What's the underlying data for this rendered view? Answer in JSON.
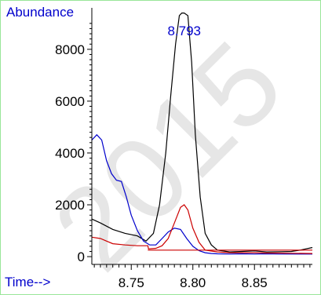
{
  "chart_data": {
    "type": "line",
    "ylabel": "Abundance",
    "xlabel": "Time-->",
    "xlim": [
      8.718,
      8.897
    ],
    "ylim": [
      -300,
      9600
    ],
    "x_ticks": [
      8.75,
      8.8,
      8.85
    ],
    "x_tick_labels": [
      "8.75",
      "8.80",
      "8.85"
    ],
    "y_ticks": [
      0,
      2000,
      4000,
      6000,
      8000
    ],
    "y_tick_labels": [
      "0",
      "2000",
      "4000",
      "6000",
      "8000"
    ],
    "annotation": {
      "text": "8.793",
      "x": 8.793
    },
    "watermark": "2015",
    "grid": false,
    "series": [
      {
        "color": "#000000",
        "x": [
          8.718,
          8.725,
          8.735,
          8.745,
          8.755,
          8.762,
          8.768,
          8.773,
          8.778,
          8.782,
          8.786,
          8.789,
          8.791,
          8.793,
          8.796,
          8.799,
          8.802,
          8.806,
          8.81,
          8.815,
          8.82,
          8.83,
          8.84,
          8.85,
          8.86,
          8.87,
          8.88,
          8.887,
          8.897
        ],
        "y": [
          1450,
          1300,
          1050,
          900,
          800,
          600,
          900,
          2000,
          4000,
          6200,
          8200,
          9300,
          9400,
          9400,
          9300,
          7500,
          4700,
          2300,
          900,
          450,
          250,
          180,
          200,
          220,
          180,
          190,
          200,
          250,
          350
        ]
      },
      {
        "color": "#0000cc",
        "x": [
          8.718,
          8.722,
          8.726,
          8.73,
          8.734,
          8.738,
          8.742,
          8.746,
          8.75,
          8.755,
          8.76,
          8.765,
          8.77,
          8.775,
          8.78,
          8.785,
          8.79,
          8.795,
          8.8,
          8.805,
          8.81,
          8.815,
          8.82,
          8.83,
          8.84,
          8.85,
          8.86,
          8.87,
          8.88,
          8.897
        ],
        "y": [
          4500,
          4700,
          4500,
          3700,
          3200,
          2950,
          2900,
          2300,
          1600,
          1000,
          600,
          450,
          450,
          700,
          950,
          1100,
          1050,
          700,
          400,
          230,
          150,
          120,
          110,
          100,
          110,
          100,
          110,
          100,
          100,
          100
        ]
      },
      {
        "color": "#cc0000",
        "x": [
          8.718,
          8.725,
          8.73,
          8.735,
          8.745,
          8.755,
          8.762,
          8.7635,
          8.764,
          8.77,
          8.775,
          8.78,
          8.785,
          8.79,
          8.793,
          8.796,
          8.8,
          8.805,
          8.81,
          8.82,
          8.83,
          8.84,
          8.85,
          8.86,
          8.87,
          8.88,
          8.897
        ],
        "y": [
          750,
          700,
          600,
          500,
          450,
          420,
          420,
          420,
          300,
          320,
          420,
          700,
          1300,
          1900,
          2000,
          1800,
          1100,
          550,
          250,
          180,
          150,
          150,
          150,
          140,
          140,
          130,
          120
        ]
      }
    ],
    "baseline": {
      "color": "#cc0000",
      "x": [
        8.7635,
        8.897
      ],
      "y": [
        250,
        250
      ]
    }
  }
}
